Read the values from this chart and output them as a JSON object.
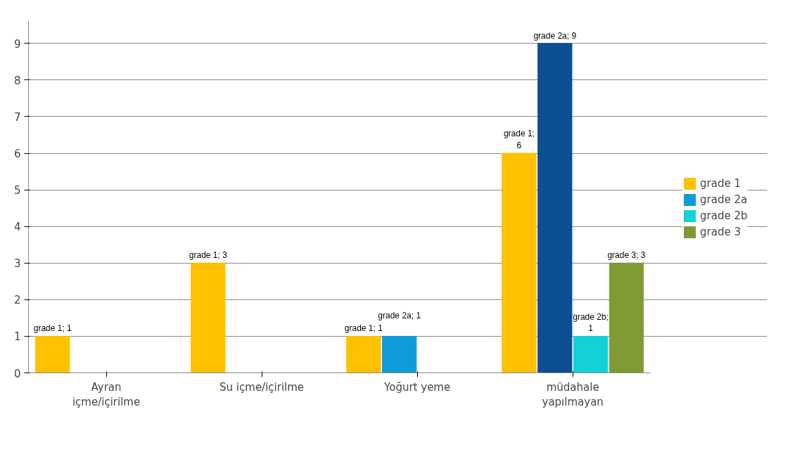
{
  "chart_data": {
    "type": "bar",
    "categories": [
      "Ayran\niçme/içirilme",
      "Su içme/içirilme",
      "Yoğurt yeme",
      "müdahale\nyapılmayan"
    ],
    "series": [
      {
        "name": "grade 1",
        "color": "#ffc000",
        "values": [
          1,
          3,
          1,
          6
        ],
        "value_labels": [
          "grade 1; 1",
          "grade 1; 3",
          "grade 1; 1",
          "grade 1; 6"
        ]
      },
      {
        "name": "grade 2a",
        "color": "#0e9bd9",
        "colors": [
          null,
          null,
          null,
          "#0c4f93"
        ],
        "values": [
          0,
          0,
          1,
          9
        ],
        "value_labels": [
          null,
          null,
          "grade 2a; 1",
          "grade 2a; 9"
        ]
      },
      {
        "name": "grade 2b",
        "color": "#14d0d8",
        "values": [
          0,
          0,
          0,
          1
        ],
        "value_labels": [
          null,
          null,
          null,
          "grade 2b; 1"
        ]
      },
      {
        "name": "grade 3",
        "color": "#7f9a32",
        "values": [
          0,
          0,
          0,
          3
        ],
        "value_labels": [
          null,
          null,
          null,
          "grade 3; 3"
        ]
      }
    ],
    "ylim": [
      0,
      9.6
    ],
    "yticks": [
      0,
      1,
      2,
      3,
      4,
      5,
      6,
      7,
      8,
      9
    ],
    "grid": "y",
    "legend": "right"
  }
}
